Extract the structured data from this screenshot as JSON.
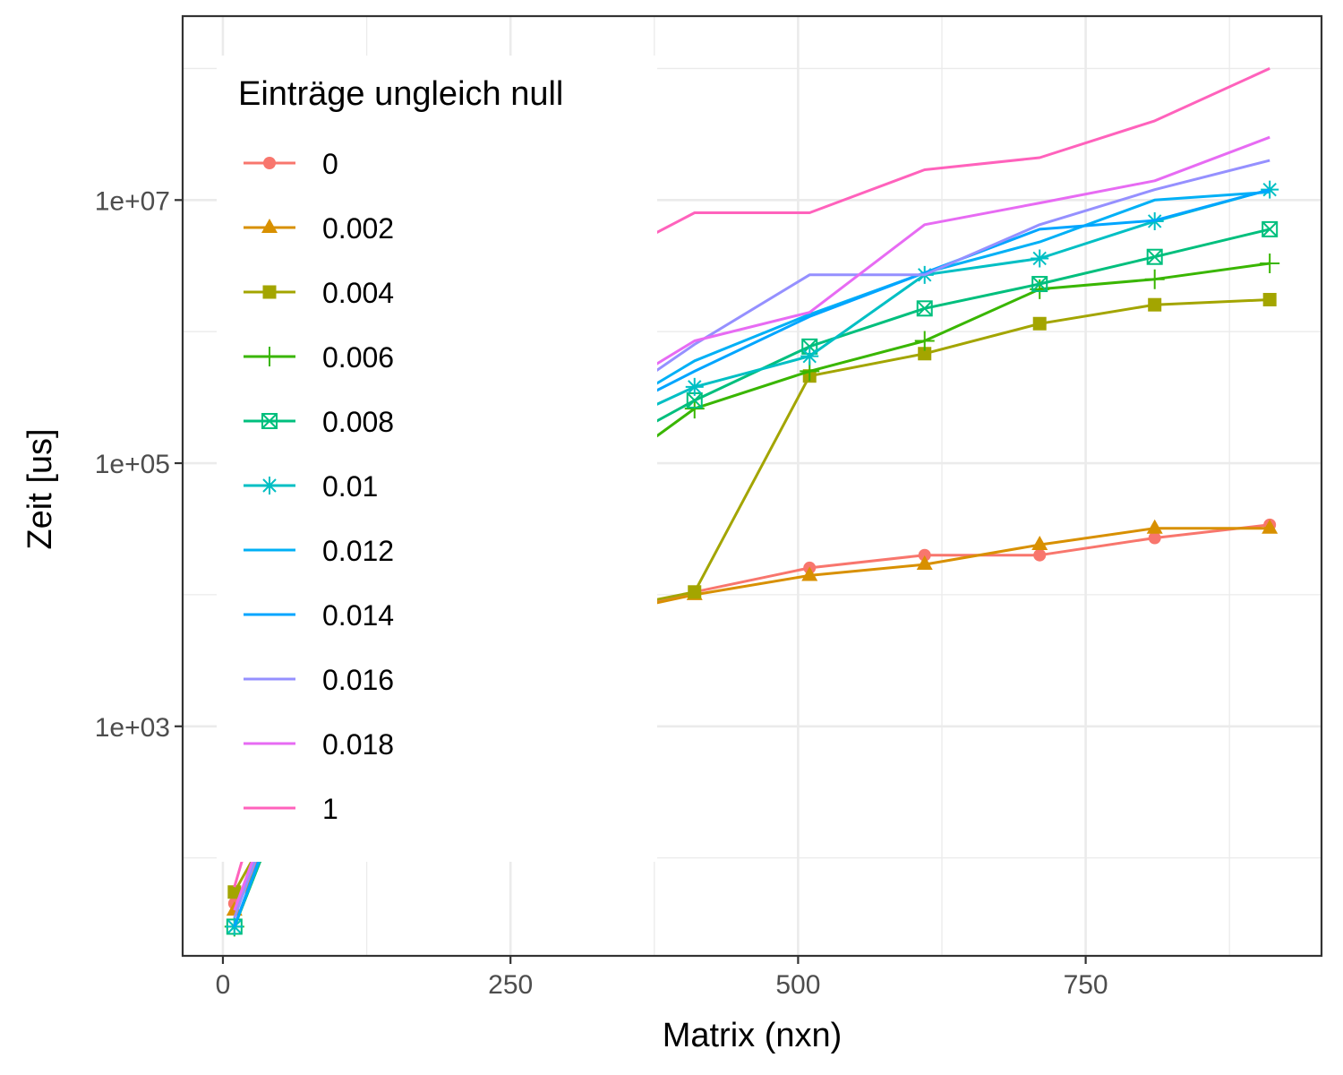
{
  "chart_data": {
    "type": "line",
    "xlabel": "Matrix (nxn)",
    "ylabel": "Zeit [us]",
    "xlim": [
      -35,
      955
    ],
    "ylim": [
      18,
      250000000
    ],
    "y_scale": "log10",
    "x_ticks": [
      0,
      250,
      500,
      750
    ],
    "x_tick_labels": [
      "0",
      "250",
      "500",
      "750"
    ],
    "y_ticks": [
      1000,
      100000,
      10000000
    ],
    "y_tick_labels": [
      "1e+03",
      "1e+05",
      "1e+07"
    ],
    "grid": true,
    "legend": {
      "title": "Einträge ungleich null",
      "position": "top-left"
    },
    "x": [
      10,
      110,
      210,
      310,
      410,
      510,
      610,
      710,
      810,
      910
    ],
    "series": [
      {
        "name": "0",
        "color": "#F8766D",
        "marker": "circle",
        "values": [
          45,
          1800,
          4000,
          6500,
          10500,
          16000,
          20000,
          20000,
          27000,
          34000
        ]
      },
      {
        "name": "0.002",
        "color": "#D89000",
        "marker": "triangle",
        "values": [
          40,
          1800,
          4000,
          6500,
          10000,
          14000,
          17000,
          24000,
          32000,
          32000
        ]
      },
      {
        "name": "0.004",
        "color": "#A3A500",
        "marker": "square",
        "values": [
          55,
          2000,
          4000,
          7000,
          10500,
          460000,
          680000,
          1150000,
          1600000,
          1750000
        ]
      },
      {
        "name": "0.006",
        "color": "#39B600",
        "marker": "plus",
        "values": [
          30,
          5000,
          20000,
          60000,
          260000,
          500000,
          850000,
          2100000,
          2500000,
          3300000
        ]
      },
      {
        "name": "0.008",
        "color": "#00BF7D",
        "marker": "square-cross",
        "values": [
          30,
          5000,
          25000,
          100000,
          300000,
          770000,
          1500000,
          2300000,
          3700000,
          6000000
        ]
      },
      {
        "name": "0.01",
        "color": "#00BFC4",
        "marker": "asterisk",
        "values": [
          30,
          6000,
          30000,
          150000,
          380000,
          650000,
          2700000,
          3600000,
          6900000,
          12000000
        ]
      },
      {
        "name": "0.012",
        "color": "#00B0F6",
        "marker": "none",
        "values": [
          30,
          7000,
          35000,
          180000,
          600000,
          1350000,
          2800000,
          4800000,
          10000000,
          11500000
        ]
      },
      {
        "name": "0.014",
        "color": "#00A5FF",
        "marker": "none",
        "values": [
          30,
          7000,
          35000,
          180000,
          500000,
          1300000,
          2800000,
          6000000,
          7000000,
          12000000
        ]
      },
      {
        "name": "0.016",
        "color": "#9590FF",
        "marker": "none",
        "values": [
          35,
          9000,
          45000,
          200000,
          800000,
          2700000,
          2700000,
          6500000,
          12000000,
          20000000
        ]
      },
      {
        "name": "0.018",
        "color": "#E76BF3",
        "marker": "none",
        "values": [
          40,
          10000,
          50000,
          250000,
          850000,
          1400000,
          6500000,
          9500000,
          14000000,
          30000000
        ]
      },
      {
        "name": "1",
        "color": "#FF62BC",
        "marker": "none",
        "values": [
          60,
          60000,
          600000,
          2800000,
          8000000,
          8000000,
          17000000,
          21000000,
          40000000,
          100000000
        ]
      }
    ]
  }
}
